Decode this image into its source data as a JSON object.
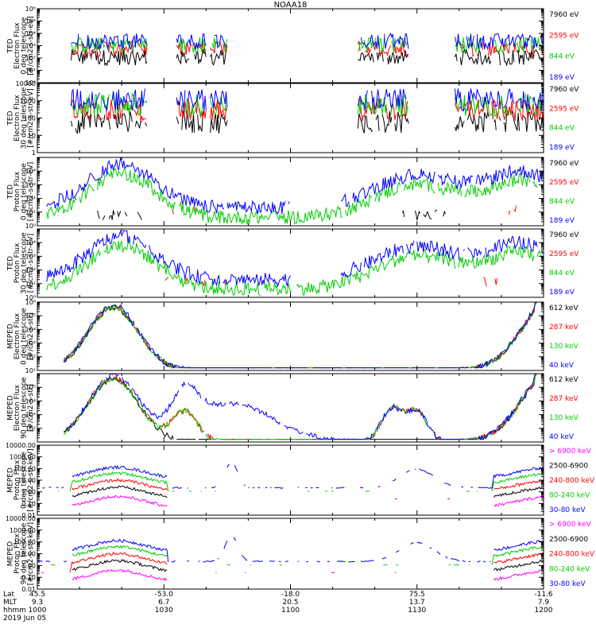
{
  "title": "NOAA18",
  "colors": {
    "black": "#000000",
    "red": "#ff0000",
    "green": "#00cc00",
    "blue": "#0000ff",
    "magenta": "#ff00ff"
  },
  "chart_data": [
    {
      "type": "line",
      "ylabel": [
        "TED",
        "Electron Flux",
        "0 deg telescope",
        "[#/cm2-s-str-eV]"
      ],
      "ylim": [
        1,
        1000000
      ],
      "log": true,
      "yticks": [
        {
          "v": 1,
          "t": "10⁰"
        },
        {
          "v": 10,
          "t": "10¹"
        },
        {
          "v": 100,
          "t": "10²"
        },
        {
          "v": 1000,
          "t": "10³"
        },
        {
          "v": 10000,
          "t": "10⁴"
        },
        {
          "v": 100000,
          "t": "10⁵"
        },
        {
          "v": 1000000,
          "t": "10⁶"
        }
      ],
      "series": [
        {
          "name": "7960 eV",
          "color": "black",
          "x": [],
          "y": []
        },
        {
          "name": "2595 eV",
          "color": "red",
          "x": [],
          "y": []
        },
        {
          "name": "844 eV",
          "color": "green",
          "x": [],
          "y": []
        },
        {
          "name": "189 eV",
          "color": "blue",
          "x": [],
          "y": []
        }
      ]
    },
    {
      "type": "line",
      "ylabel": [
        "TED",
        "Electron Flux",
        "30 deg telescope",
        "[#/cm2-s-str-eV]"
      ],
      "ylim": [
        1,
        10000
      ],
      "log": true,
      "yticks": [
        {
          "v": 1,
          "t": "1"
        },
        {
          "v": 10,
          "t": "10"
        },
        {
          "v": 100,
          "t": "100"
        },
        {
          "v": 1000,
          "t": "1000"
        },
        {
          "v": 10000,
          "t": "10000"
        }
      ],
      "series": [
        {
          "name": "7960 eV",
          "color": "black",
          "x": [],
          "y": []
        },
        {
          "name": "2595 eV",
          "color": "red",
          "x": [],
          "y": []
        },
        {
          "name": "844 eV",
          "color": "green",
          "x": [],
          "y": []
        },
        {
          "name": "189 eV",
          "color": "blue",
          "x": [],
          "y": []
        }
      ]
    },
    {
      "type": "line",
      "ylabel": [
        "TED",
        "Proton Flux",
        "0 deg telescope",
        "[#/cm2-s-str-eV]"
      ],
      "ylim": [
        1,
        100000
      ],
      "log": true,
      "yticks": [
        {
          "v": 1,
          "t": "10⁰"
        },
        {
          "v": 10,
          "t": "10¹"
        },
        {
          "v": 100,
          "t": "10²"
        },
        {
          "v": 1000,
          "t": "10³"
        },
        {
          "v": 10000,
          "t": "10⁴"
        }
      ],
      "series": [
        {
          "name": "7960 eV",
          "color": "black",
          "x": [],
          "y": []
        },
        {
          "name": "2595 eV",
          "color": "red",
          "x": [],
          "y": []
        },
        {
          "name": "844 eV",
          "color": "green",
          "x": [],
          "y": []
        },
        {
          "name": "189 eV",
          "color": "blue",
          "x": [],
          "y": []
        }
      ]
    },
    {
      "type": "line",
      "ylabel": [
        "TED",
        "Proton Flux",
        "30 deg telescope",
        "[#/cm2-s-str-eV]"
      ],
      "ylim": [
        1,
        100000
      ],
      "log": true,
      "yticks": [
        {
          "v": 1,
          "t": "10⁰"
        },
        {
          "v": 10,
          "t": "10¹"
        },
        {
          "v": 100,
          "t": "10²"
        },
        {
          "v": 1000,
          "t": "10³"
        },
        {
          "v": 10000,
          "t": "10⁴"
        }
      ],
      "series": [
        {
          "name": "7960 eV",
          "color": "black",
          "x": [],
          "y": []
        },
        {
          "name": "2595 eV",
          "color": "red",
          "x": [],
          "y": []
        },
        {
          "name": "844 eV",
          "color": "green",
          "x": [],
          "y": []
        },
        {
          "name": "189 eV",
          "color": "blue",
          "x": [],
          "y": []
        }
      ]
    },
    {
      "type": "line",
      "ylabel": [
        "MEPED",
        "Electron Flux",
        "0 deg telescope",
        "[#/cm2-s-str]"
      ],
      "ylim": [
        10,
        1000000
      ],
      "log": true,
      "yticks": [
        {
          "v": 10,
          "t": "10¹"
        },
        {
          "v": 100,
          "t": "10²"
        },
        {
          "v": 1000,
          "t": "10³"
        },
        {
          "v": 10000,
          "t": "10⁴"
        },
        {
          "v": 100000,
          "t": "10⁵"
        },
        {
          "v": 1000000,
          "t": "10⁶"
        }
      ],
      "series": [
        {
          "name": "612 keV",
          "color": "black",
          "x": [],
          "y": []
        },
        {
          "name": "287 keV",
          "color": "red",
          "x": [],
          "y": []
        },
        {
          "name": "130 keV",
          "color": "green",
          "x": [],
          "y": []
        },
        {
          "name": "40 keV",
          "color": "blue",
          "x": [],
          "y": []
        }
      ]
    },
    {
      "type": "line",
      "ylabel": [
        "MEPED",
        "Electron Flux",
        "90 deg telescope",
        "[#/cm2-s-str]"
      ],
      "ylim": [
        10,
        1000000
      ],
      "log": true,
      "yticks": [
        {
          "v": 100,
          "t": "10²"
        },
        {
          "v": 1000,
          "t": "10³"
        },
        {
          "v": 10000,
          "t": "10⁴"
        },
        {
          "v": 100000,
          "t": "10⁵"
        }
      ],
      "series": [
        {
          "name": "612 keV",
          "color": "black",
          "x": [],
          "y": []
        },
        {
          "name": "287 keV",
          "color": "red",
          "x": [],
          "y": []
        },
        {
          "name": "130 keV",
          "color": "green",
          "x": [],
          "y": []
        },
        {
          "name": "40 keV",
          "color": "blue",
          "x": [],
          "y": []
        }
      ]
    },
    {
      "type": "line",
      "ylabel": [
        "MEPED",
        "Proton Flux",
        "0 deg telescope",
        "[#/cm2-s-str-keV]"
      ],
      "ylim": [
        0.01,
        10000
      ],
      "log": true,
      "yticks": [
        {
          "v": 0.01,
          "t": "0.01"
        },
        {
          "v": 0.1,
          "t": "0.10"
        },
        {
          "v": 1,
          "t": "1.00"
        },
        {
          "v": 10,
          "t": "10.00"
        },
        {
          "v": 100,
          "t": "100.00"
        },
        {
          "v": 1000,
          "t": "1000.00"
        },
        {
          "v": 10000,
          "t": "10000.00"
        }
      ],
      "series": [
        {
          "name": "> 6900 keV",
          "color": "magenta",
          "x": [],
          "y": []
        },
        {
          "name": "2500-6900",
          "color": "black",
          "x": [],
          "y": []
        },
        {
          "name": "240-800 keV",
          "color": "red",
          "x": [],
          "y": []
        },
        {
          "name": "80-240 keV",
          "color": "green",
          "x": [],
          "y": []
        },
        {
          "name": "30-80 keV",
          "color": "blue",
          "x": [],
          "y": []
        }
      ]
    },
    {
      "type": "line",
      "ylabel": [
        "MEPED",
        "Proton Flux",
        "90 deg telescope",
        "[#/cm2-s-str-keV]"
      ],
      "ylim": [
        0.01,
        10000
      ],
      "log": true,
      "yticks": [
        {
          "v": 0.01,
          "t": "0.01"
        },
        {
          "v": 0.1,
          "t": "0.10"
        },
        {
          "v": 1,
          "t": "1.00"
        },
        {
          "v": 10,
          "t": "10.00"
        },
        {
          "v": 100,
          "t": "100.00"
        },
        {
          "v": 1000,
          "t": "1000.00"
        },
        {
          "v": 10000,
          "t": "10000.00"
        }
      ],
      "series": [
        {
          "name": "> 6900 keV",
          "color": "magenta",
          "x": [],
          "y": []
        },
        {
          "name": "2500-6900",
          "color": "black",
          "x": [],
          "y": []
        },
        {
          "name": "240-800 keV",
          "color": "red",
          "x": [],
          "y": []
        },
        {
          "name": "80-240 keV",
          "color": "green",
          "x": [],
          "y": []
        },
        {
          "name": "30-80 keV",
          "color": "blue",
          "x": [],
          "y": []
        }
      ]
    }
  ],
  "xaxis": {
    "row_labels": [
      "Lat",
      "MLT",
      "hhmm"
    ],
    "ticks": [
      {
        "hhmm": "1000",
        "lat": "45.5",
        "mlt": "9.3"
      },
      {
        "hhmm": "1030",
        "lat": "-53.0",
        "mlt": "6.7"
      },
      {
        "hhmm": "1100",
        "lat": "-18.0",
        "mlt": "20.5"
      },
      {
        "hhmm": "1130",
        "lat": "75.5",
        "mlt": "13.7"
      },
      {
        "hhmm": "1200",
        "lat": "-11.6",
        "mlt": "7.9"
      }
    ],
    "date": "2019 Jun 05"
  }
}
